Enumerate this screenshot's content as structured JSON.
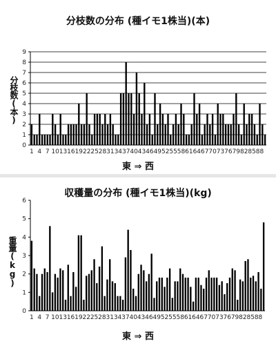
{
  "chart_data": [
    {
      "type": "bar",
      "title": "分枝数の分布 (種イモ1株当)(本)",
      "ylabel": "分枝数(本)",
      "xlabel": "東 ⇒ 西",
      "ylim": [
        0,
        9
      ],
      "yticks": [
        0,
        1,
        2,
        3,
        4,
        5,
        6,
        7,
        8,
        9
      ],
      "grid": true,
      "categories": [
        "1",
        "2",
        "3",
        "4",
        "5",
        "6",
        "7",
        "8",
        "9",
        "10",
        "11",
        "12",
        "13",
        "14",
        "15",
        "16",
        "17",
        "18",
        "19",
        "20",
        "21",
        "22",
        "23",
        "24",
        "25",
        "26",
        "27",
        "28",
        "29",
        "30",
        "31",
        "32",
        "33",
        "34",
        "35",
        "36",
        "37",
        "38",
        "39",
        "40",
        "41",
        "42",
        "43",
        "44",
        "45",
        "46",
        "47",
        "48",
        "49",
        "50",
        "51",
        "52",
        "53",
        "54",
        "55",
        "56",
        "57",
        "58",
        "59",
        "60",
        "61",
        "62",
        "63",
        "64",
        "65",
        "66",
        "67",
        "68",
        "69",
        "70",
        "71",
        "72",
        "73",
        "74",
        "75",
        "76",
        "77",
        "78",
        "79",
        "80",
        "81",
        "82",
        "83",
        "84",
        "85",
        "86",
        "87",
        "88",
        "89",
        "90"
      ],
      "tick_labels": [
        "1",
        "4",
        "7",
        "10",
        "13",
        "16",
        "19",
        "22",
        "25",
        "28",
        "31",
        "34",
        "37",
        "40",
        "43",
        "46",
        "49",
        "52",
        "55",
        "58",
        "61",
        "64",
        "67",
        "70",
        "73",
        "76",
        "79",
        "82",
        "85",
        "88"
      ],
      "values": [
        2,
        1,
        1,
        3,
        1,
        1,
        1,
        1,
        3,
        2,
        1,
        3,
        1,
        1,
        2,
        2,
        2,
        2,
        4,
        2,
        2,
        5,
        2,
        1,
        3,
        3,
        3,
        2,
        3,
        2,
        3,
        2,
        1,
        1,
        5,
        5,
        8,
        5,
        5,
        3,
        7,
        5,
        3,
        6,
        2,
        3,
        1,
        5,
        2,
        4,
        3,
        2,
        3,
        1,
        2,
        3,
        2,
        4,
        3,
        1,
        1,
        2,
        5,
        3,
        4,
        1,
        2,
        3,
        2,
        3,
        1,
        4,
        3,
        3,
        2,
        2,
        2,
        3,
        5,
        2,
        1,
        4,
        2,
        3,
        3,
        2,
        1,
        4,
        2,
        1
      ]
    },
    {
      "type": "bar",
      "title": "収穫量の分布 (種イモ1株当)(kg)",
      "ylabel": "重量(kg)",
      "xlabel": "東 ⇒ 西",
      "ylim": [
        0,
        6
      ],
      "yticks": [
        0,
        1,
        2,
        3,
        4,
        5,
        6
      ],
      "grid": false,
      "categories": [
        "1",
        "2",
        "3",
        "4",
        "5",
        "6",
        "7",
        "8",
        "9",
        "10",
        "11",
        "12",
        "13",
        "14",
        "15",
        "16",
        "17",
        "18",
        "19",
        "20",
        "21",
        "22",
        "23",
        "24",
        "25",
        "26",
        "27",
        "28",
        "29",
        "30",
        "31",
        "32",
        "33",
        "34",
        "35",
        "36",
        "37",
        "38",
        "39",
        "40",
        "41",
        "42",
        "43",
        "44",
        "45",
        "46",
        "47",
        "48",
        "49",
        "50",
        "51",
        "52",
        "53",
        "54",
        "55",
        "56",
        "57",
        "58",
        "59",
        "60",
        "61",
        "62",
        "63",
        "64",
        "65",
        "66",
        "67",
        "68",
        "69",
        "70",
        "71",
        "72",
        "73",
        "74",
        "75",
        "76",
        "77",
        "78",
        "79",
        "80",
        "81",
        "82",
        "83",
        "84",
        "85",
        "86",
        "87",
        "88",
        "89",
        "90"
      ],
      "tick_labels": [
        "1",
        "4",
        "7",
        "10",
        "13",
        "16",
        "19",
        "22",
        "25",
        "28",
        "31",
        "34",
        "37",
        "40",
        "43",
        "46",
        "49",
        "52",
        "55",
        "58",
        "61",
        "64",
        "67",
        "70",
        "73",
        "76",
        "79",
        "82",
        "85",
        "88"
      ],
      "values": [
        3.8,
        2.3,
        2.0,
        0.8,
        2.0,
        2.3,
        2.1,
        4.6,
        1.0,
        2.0,
        1.8,
        2.3,
        2.2,
        0.6,
        2.5,
        0.8,
        2.1,
        1.3,
        4.1,
        4.1,
        0.6,
        1.9,
        2.0,
        2.2,
        2.8,
        1.5,
        2.4,
        3.5,
        0.8,
        1.7,
        2.8,
        1.6,
        1.5,
        0.8,
        0.8,
        0.6,
        2.9,
        4.4,
        3.3,
        1.2,
        0.8,
        2.0,
        2.5,
        2.2,
        1.6,
        2.0,
        3.1,
        0.7,
        1.6,
        1.8,
        1.8,
        1.3,
        1.8,
        2.3,
        0.7,
        1.6,
        1.6,
        2.3,
        2.0,
        1.8,
        1.8,
        1.3,
        0.5,
        1.8,
        1.8,
        1.4,
        1.2,
        1.8,
        2.2,
        1.8,
        1.8,
        1.8,
        1.4,
        1.6,
        0.9,
        1.5,
        1.8,
        2.3,
        2.2,
        0.6,
        1.7,
        1.6,
        2.7,
        2.8,
        1.8,
        1.9,
        1.6,
        2.1,
        1.2,
        4.8
      ]
    }
  ]
}
